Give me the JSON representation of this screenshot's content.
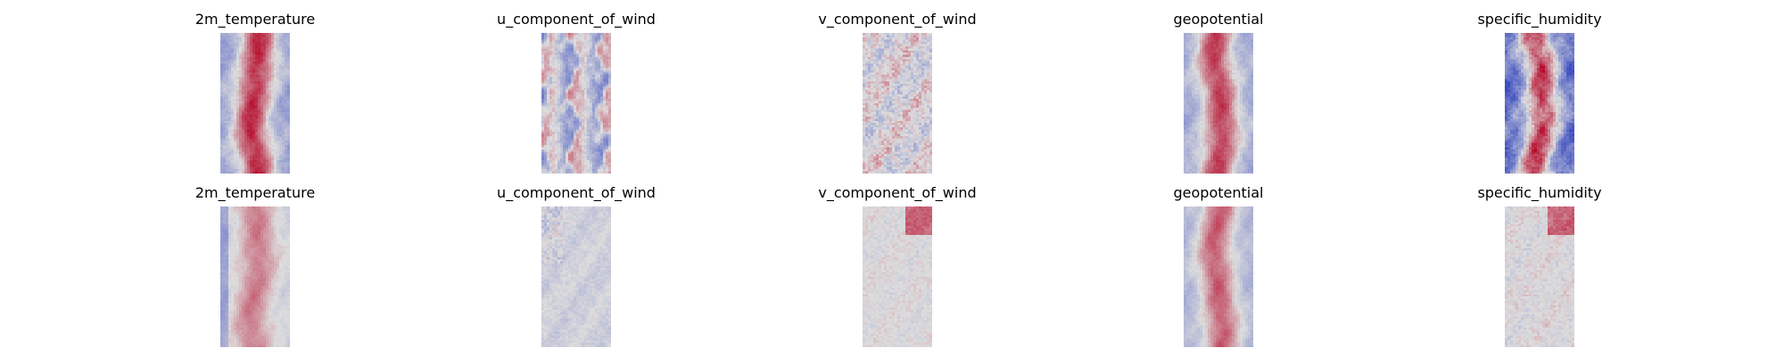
{
  "chart_data": {
    "type": "heatmap",
    "colormap": "coolwarm",
    "colors": {
      "cold": "#3b4cc0",
      "neutral": "#dddddd",
      "warm": "#b40426"
    },
    "grid": false,
    "layout": "2 rows x 5 columns",
    "rows": [
      {
        "panels": [
          {
            "title": "2m_temperature",
            "pattern": "warm_center_band",
            "intensity": 0.85
          },
          {
            "title": "u_component_of_wind",
            "pattern": "mixed_streaks",
            "intensity": 0.55
          },
          {
            "title": "v_component_of_wind",
            "pattern": "speckled_neutral",
            "intensity": 0.4
          },
          {
            "title": "geopotential",
            "pattern": "warm_center_band",
            "intensity": 0.75
          },
          {
            "title": "specific_humidity",
            "pattern": "cold_sides_warm_core",
            "intensity": 0.8
          }
        ]
      },
      {
        "panels": [
          {
            "title": "2m_temperature",
            "pattern": "pale_warm_band",
            "intensity": 0.4
          },
          {
            "title": "u_component_of_wind",
            "pattern": "pale_cool",
            "intensity": 0.15
          },
          {
            "title": "v_component_of_wind",
            "pattern": "pale_neutral_hotspot",
            "intensity": 0.2
          },
          {
            "title": "geopotential",
            "pattern": "warm_center_band",
            "intensity": 0.6
          },
          {
            "title": "specific_humidity",
            "pattern": "pale_neutral_hotspot",
            "intensity": 0.25
          }
        ]
      }
    ]
  }
}
